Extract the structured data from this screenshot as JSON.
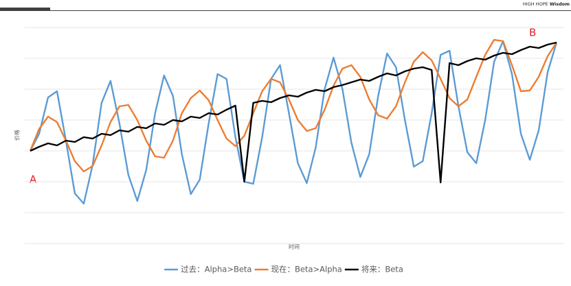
{
  "header": {
    "brand": [
      "HIGH HOPE",
      "Wisdom"
    ]
  },
  "chart_data": {
    "type": "line",
    "x_label": "时间",
    "y_label": "价格",
    "annotations": [
      "A",
      "B"
    ],
    "x": [
      0,
      1,
      2,
      3,
      4,
      5,
      6,
      7,
      8,
      9,
      10,
      11,
      12,
      13,
      14,
      15,
      16,
      17,
      18,
      19,
      20,
      21,
      22,
      23,
      24,
      25,
      26,
      27,
      28,
      29,
      30,
      31,
      32,
      33,
      34,
      35,
      36,
      37,
      38,
      39,
      40,
      41,
      42,
      43,
      44,
      45,
      46,
      47,
      48,
      49,
      50,
      51,
      52,
      53,
      54,
      55,
      56,
      57,
      58,
      59
    ],
    "xlim": [
      0,
      59
    ],
    "ylim": [
      0,
      315
    ],
    "yticks": [
      0,
      45,
      90,
      135,
      180,
      225,
      270,
      315
    ],
    "grid": true,
    "legend": "bottom",
    "series": [
      {
        "name": "过去：Alpha>Beta",
        "color": "#5b9bd5",
        "values": [
          135,
          160,
          213,
          222,
          150,
          73,
          58,
          115,
          205,
          237,
          175,
          100,
          62,
          107,
          190,
          245,
          215,
          130,
          72,
          93,
          175,
          247,
          240,
          155,
          90,
          87,
          155,
          240,
          260,
          190,
          117,
          88,
          140,
          225,
          271,
          225,
          147,
          97,
          130,
          215,
          277,
          257,
          180,
          112,
          120,
          190,
          275,
          281,
          200,
          133,
          117,
          180,
          265,
          295,
          247,
          160,
          122,
          165,
          250,
          293
        ]
      },
      {
        "name": "现在：Beta>Alpha",
        "color": "#ed7d31",
        "values": [
          135,
          167,
          185,
          177,
          150,
          120,
          105,
          113,
          143,
          177,
          200,
          202,
          180,
          150,
          127,
          125,
          150,
          190,
          212,
          223,
          209,
          180,
          153,
          142,
          157,
          190,
          222,
          240,
          235,
          210,
          180,
          164,
          168,
          195,
          230,
          255,
          260,
          243,
          210,
          187,
          182,
          200,
          235,
          265,
          279,
          267,
          240,
          212,
          200,
          210,
          243,
          275,
          297,
          295,
          260,
          222,
          223,
          243,
          273,
          293
        ]
      },
      {
        "name": "将来：Beta",
        "color": "#000000",
        "values": [
          135,
          141,
          146,
          143,
          150,
          148,
          155,
          153,
          160,
          158,
          165,
          163,
          170,
          168,
          175,
          173,
          180,
          178,
          185,
          183,
          190,
          188,
          195,
          201,
          90,
          205,
          208,
          206,
          212,
          216,
          214,
          220,
          224,
          222,
          228,
          231,
          235,
          239,
          237,
          243,
          248,
          245,
          251,
          255,
          257,
          253,
          89,
          263,
          260,
          266,
          270,
          268,
          274,
          278,
          276,
          282,
          287,
          285,
          290,
          293
        ]
      }
    ]
  }
}
